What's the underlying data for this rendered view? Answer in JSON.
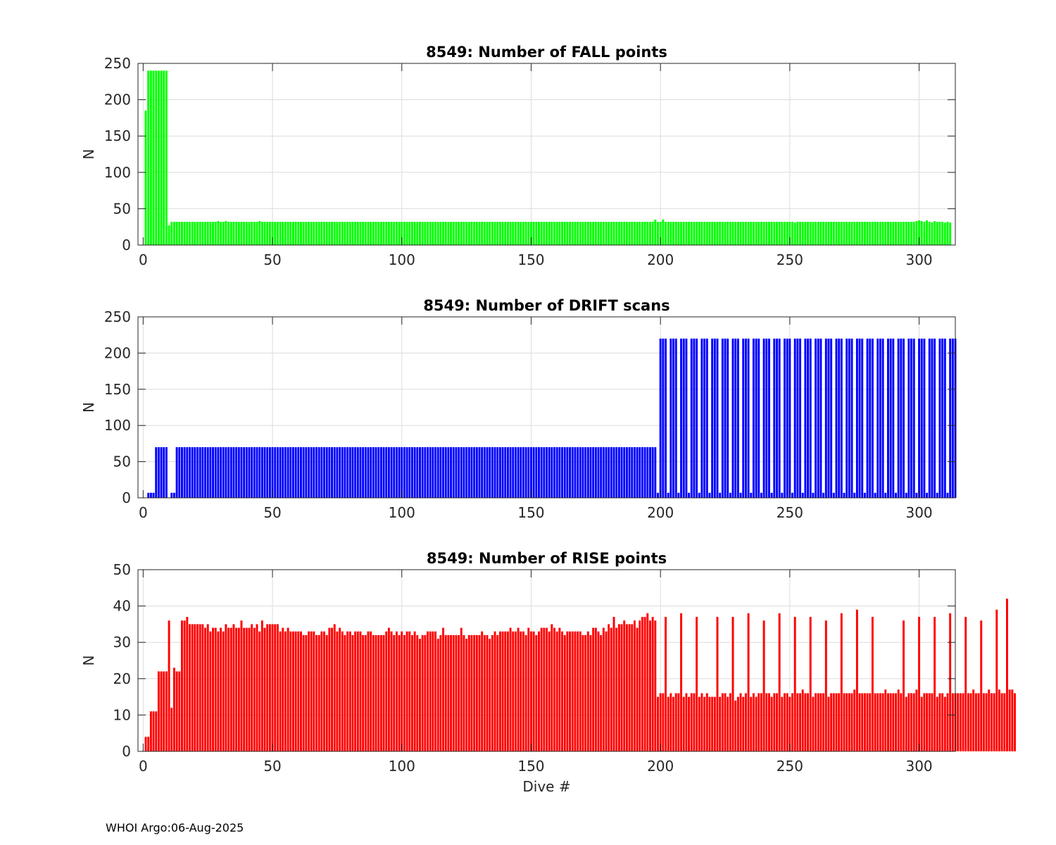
{
  "figure": {
    "footer": "WHOI Argo:06-Aug-2025"
  },
  "chart_data": [
    {
      "type": "bar",
      "title": "8549: Number of FALL points",
      "xlabel": "",
      "ylabel": "N",
      "xlim": [
        -2,
        314
      ],
      "ylim": [
        0,
        250
      ],
      "xticks": [
        0,
        50,
        100,
        150,
        200,
        250,
        300
      ],
      "yticks": [
        0,
        50,
        100,
        150,
        200,
        250
      ],
      "grid": true,
      "color": "#00ff00",
      "x_start": 1,
      "values": [
        185,
        240,
        240,
        240,
        240,
        240,
        240,
        240,
        240,
        27,
        32,
        32,
        32,
        32,
        32,
        32,
        32,
        32,
        32,
        32,
        32,
        32,
        32,
        32,
        32,
        32,
        32,
        32,
        33,
        32,
        32,
        33,
        32,
        32,
        32,
        32,
        32,
        32,
        32,
        32,
        32,
        32,
        32,
        32,
        33,
        32,
        32,
        32,
        32,
        32,
        32,
        32,
        32,
        32,
        32,
        32,
        32,
        32,
        32,
        32,
        32,
        32,
        32,
        32,
        32,
        32,
        32,
        32,
        32,
        32,
        32,
        32,
        32,
        32,
        32,
        32,
        32,
        32,
        32,
        32,
        32,
        32,
        32,
        32,
        32,
        32,
        32,
        32,
        32,
        32,
        32,
        32,
        32,
        32,
        32,
        32,
        32,
        32,
        32,
        32,
        32,
        32,
        32,
        32,
        32,
        32,
        32,
        32,
        32,
        32,
        32,
        32,
        32,
        32,
        32,
        32,
        32,
        32,
        32,
        32,
        32,
        32,
        32,
        32,
        32,
        32,
        32,
        32,
        32,
        32,
        32,
        32,
        32,
        32,
        32,
        32,
        32,
        32,
        32,
        32,
        32,
        32,
        32,
        32,
        32,
        32,
        32,
        32,
        32,
        32,
        32,
        32,
        32,
        32,
        32,
        32,
        32,
        32,
        32,
        32,
        32,
        32,
        32,
        32,
        32,
        32,
        32,
        32,
        32,
        32,
        32,
        32,
        32,
        32,
        32,
        32,
        32,
        32,
        32,
        32,
        32,
        32,
        32,
        32,
        32,
        32,
        32,
        32,
        32,
        32,
        32,
        32,
        32,
        32,
        32,
        32,
        32,
        35,
        32,
        32,
        35,
        32,
        32,
        32,
        32,
        32,
        32,
        32,
        32,
        32,
        32,
        32,
        32,
        32,
        32,
        32,
        32,
        32,
        32,
        32,
        32,
        32,
        32,
        32,
        32,
        32,
        32,
        32,
        32,
        32,
        32,
        32,
        32,
        32,
        32,
        32,
        32,
        32,
        32,
        32,
        32,
        32,
        32,
        32,
        32,
        32,
        32,
        32,
        32,
        32,
        32,
        31,
        32,
        32,
        32,
        32,
        32,
        32,
        32,
        32,
        32,
        32,
        32,
        32,
        32,
        32,
        32,
        32,
        32,
        32,
        32,
        32,
        32,
        32,
        32,
        32,
        32,
        32,
        32,
        32,
        32,
        32,
        32,
        32,
        32,
        32,
        32,
        32,
        32,
        32,
        32,
        32,
        32,
        32,
        32,
        32,
        32,
        32,
        33,
        34,
        33,
        32,
        34,
        32,
        31,
        33,
        32,
        32,
        32,
        31,
        32,
        31
      ]
    },
    {
      "type": "bar",
      "title": "8549: Number of DRIFT scans",
      "xlabel": "",
      "ylabel": "N",
      "xlim": [
        -2,
        314
      ],
      "ylim": [
        0,
        250
      ],
      "xticks": [
        0,
        50,
        100,
        150,
        200,
        250,
        300
      ],
      "yticks": [
        0,
        50,
        100,
        150,
        200,
        250
      ],
      "grid": true,
      "color": "#0000ff",
      "x_start": 1,
      "values": [
        0,
        7,
        7,
        7,
        70,
        70,
        70,
        70,
        70,
        0,
        7,
        7,
        70,
        70,
        70,
        70,
        70,
        70,
        70,
        70,
        70,
        70,
        70,
        70,
        70,
        70,
        70,
        70,
        70,
        70,
        70,
        70,
        70,
        70,
        70,
        70,
        70,
        70,
        70,
        70,
        70,
        70,
        70,
        70,
        70,
        70,
        70,
        70,
        70,
        70,
        70,
        70,
        70,
        70,
        70,
        70,
        70,
        70,
        70,
        70,
        70,
        70,
        70,
        70,
        70,
        70,
        70,
        70,
        70,
        70,
        70,
        70,
        70,
        70,
        70,
        70,
        70,
        70,
        70,
        70,
        70,
        70,
        70,
        70,
        70,
        70,
        70,
        70,
        70,
        70,
        70,
        70,
        70,
        70,
        70,
        70,
        70,
        70,
        70,
        70,
        70,
        70,
        70,
        70,
        70,
        70,
        70,
        70,
        70,
        70,
        70,
        70,
        70,
        70,
        70,
        70,
        70,
        70,
        70,
        70,
        70,
        70,
        70,
        70,
        70,
        70,
        70,
        70,
        70,
        70,
        70,
        70,
        70,
        70,
        70,
        70,
        70,
        70,
        70,
        70,
        70,
        70,
        70,
        70,
        70,
        70,
        70,
        70,
        70,
        70,
        70,
        70,
        70,
        70,
        70,
        70,
        70,
        70,
        70,
        70,
        70,
        70,
        70,
        70,
        70,
        70,
        70,
        70,
        70,
        70,
        70,
        70,
        70,
        70,
        70,
        70,
        70,
        70,
        70,
        70,
        70,
        70,
        70,
        70,
        70,
        70,
        70,
        70,
        70,
        70,
        70,
        70,
        70,
        70,
        70,
        70,
        70,
        70,
        7,
        220,
        220,
        220,
        7,
        220,
        220,
        220,
        7,
        220,
        220,
        220,
        7,
        220,
        220,
        220,
        7,
        220,
        220,
        220,
        7,
        220,
        220,
        220,
        7,
        220,
        220,
        220,
        7,
        220,
        220,
        220,
        7,
        220,
        220,
        220,
        7,
        220,
        220,
        220,
        7,
        220,
        220,
        220,
        7,
        220,
        220,
        220,
        7,
        220,
        220,
        220,
        7,
        220,
        220,
        220,
        7,
        220,
        220,
        220,
        7,
        220,
        220,
        220,
        7,
        220,
        220,
        220,
        7,
        220,
        220,
        220,
        7,
        220,
        220,
        220,
        7,
        220,
        220,
        220,
        7,
        220,
        220,
        220,
        7,
        220,
        220,
        220,
        7,
        220,
        220,
        220,
        7,
        220,
        220,
        220,
        7,
        220,
        220,
        220,
        7,
        220,
        220,
        220,
        7,
        220,
        220,
        220,
        7,
        220,
        220,
        220,
        7,
        220,
        220,
        220
      ]
    },
    {
      "type": "bar",
      "title": "8549: Number of RISE points",
      "xlabel": "Dive #",
      "ylabel": "N",
      "xlim": [
        -2,
        314
      ],
      "ylim": [
        0,
        50
      ],
      "xticks": [
        0,
        50,
        100,
        150,
        200,
        250,
        300
      ],
      "yticks": [
        0,
        10,
        20,
        30,
        40,
        50
      ],
      "grid": true,
      "color": "#ff0000",
      "x_start": 1,
      "values": [
        4,
        4,
        11,
        11,
        11,
        22,
        22,
        22,
        22,
        36,
        12,
        23,
        22,
        22,
        36,
        36,
        37,
        35,
        35,
        35,
        35,
        35,
        35,
        34,
        35,
        33,
        34,
        34,
        33,
        34,
        33,
        35,
        34,
        34,
        35,
        34,
        34,
        36,
        34,
        34,
        34,
        35,
        34,
        35,
        33,
        36,
        34,
        35,
        35,
        35,
        35,
        35,
        33,
        34,
        33,
        34,
        33,
        33,
        33,
        33,
        33,
        32,
        32,
        33,
        33,
        33,
        32,
        32,
        33,
        33,
        32,
        34,
        34,
        35,
        33,
        34,
        33,
        32,
        33,
        33,
        32,
        33,
        33,
        33,
        32,
        32,
        33,
        33,
        32,
        32,
        32,
        32,
        32,
        33,
        34,
        33,
        32,
        33,
        32,
        33,
        32,
        33,
        33,
        32,
        33,
        32,
        31,
        32,
        32,
        33,
        33,
        33,
        33,
        31,
        32,
        34,
        32,
        32,
        32,
        32,
        32,
        32,
        34,
        32,
        31,
        32,
        32,
        32,
        32,
        32,
        33,
        32,
        32,
        31,
        32,
        33,
        32,
        33,
        33,
        33,
        33,
        34,
        33,
        33,
        34,
        33,
        33,
        32,
        34,
        33,
        33,
        32,
        33,
        34,
        34,
        34,
        33,
        35,
        34,
        33,
        34,
        33,
        32,
        33,
        33,
        33,
        33,
        33,
        33,
        32,
        32,
        33,
        32,
        34,
        34,
        33,
        32,
        34,
        33,
        35,
        34,
        37,
        34,
        35,
        35,
        36,
        35,
        35,
        35,
        36,
        34,
        36,
        37,
        37,
        38,
        36,
        37,
        36,
        15,
        16,
        16,
        37,
        15,
        16,
        15,
        16,
        16,
        38,
        15,
        16,
        15,
        16,
        16,
        37,
        15,
        16,
        15,
        16,
        15,
        15,
        15,
        37,
        15,
        16,
        16,
        15,
        16,
        37,
        14,
        15,
        16,
        15,
        16,
        38,
        15,
        16,
        15,
        16,
        16,
        36,
        16,
        16,
        15,
        16,
        16,
        38,
        15,
        16,
        16,
        15,
        16,
        37,
        16,
        16,
        17,
        16,
        16,
        37,
        15,
        16,
        16,
        16,
        16,
        36,
        15,
        16,
        16,
        16,
        16,
        38,
        16,
        16,
        16,
        16,
        17,
        39,
        16,
        16,
        16,
        16,
        16,
        37,
        16,
        16,
        16,
        16,
        17,
        16,
        16,
        16,
        16,
        17,
        16,
        36,
        15,
        16,
        16,
        16,
        17,
        37,
        15,
        16,
        16,
        16,
        16,
        37,
        15,
        16,
        16,
        15,
        16,
        38,
        16,
        16,
        16,
        16,
        16,
        37,
        16,
        16,
        17,
        16,
        16,
        36,
        16,
        16,
        17,
        16,
        16,
        39,
        17,
        16,
        16,
        42,
        17,
        17,
        16
      ]
    }
  ]
}
